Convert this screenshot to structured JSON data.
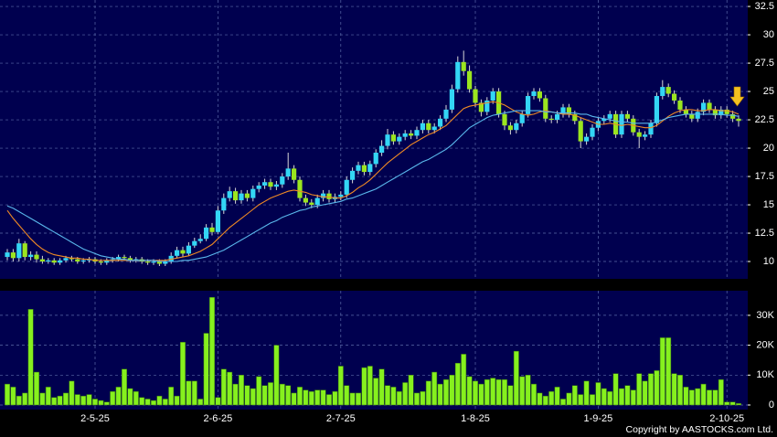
{
  "chart_data": [
    {
      "type": "candlestick",
      "open": [
        10.4,
        10.8,
        10.3,
        11.6,
        10.4,
        10.6,
        10.2,
        10.0,
        10.1,
        9.9,
        10.1,
        10.3,
        10.2,
        10.0,
        10.1,
        10.2,
        10.0,
        9.9,
        10.1,
        10.2,
        10.4,
        10.3,
        10.1,
        10.2,
        10.0,
        9.9,
        10.0,
        9.8,
        10.0,
        10.5,
        11.0,
        10.7,
        11.4,
        11.8,
        12.0,
        13.0,
        12.6,
        14.5,
        15.6,
        16.2,
        15.4,
        16.0,
        15.6,
        16.4,
        16.7,
        17.0,
        16.6,
        16.8,
        17.5,
        18.2,
        17.2,
        15.6,
        15.2,
        15.0,
        15.6,
        16.0,
        15.5,
        15.7,
        15.9,
        17.2,
        18.0,
        18.5,
        17.9,
        18.6,
        19.6,
        20.2,
        21.2,
        20.6,
        21.0,
        21.3,
        21.1,
        21.6,
        22.2,
        21.6,
        21.9,
        22.6,
        23.4,
        25.2,
        27.6,
        26.8,
        25.2,
        24.0,
        23.2,
        24.2,
        25.0,
        23.0,
        22.0,
        21.6,
        22.2,
        23.0,
        24.6,
        25.0,
        24.4,
        22.6,
        22.5,
        23.0,
        23.6,
        23.0,
        22.4,
        20.6,
        21.0,
        21.8,
        22.4,
        22.6,
        23.0,
        21.2,
        23.0,
        22.6,
        21.4,
        21.0,
        21.2,
        22.2,
        24.6,
        25.4,
        24.8,
        24.2,
        23.4,
        23.0,
        22.6,
        23.2,
        24.0,
        23.4,
        22.9,
        23.4,
        23.0,
        22.6
      ],
      "high": [
        11.1,
        11.1,
        12.0,
        11.8,
        10.9,
        10.9,
        10.5,
        10.3,
        10.3,
        10.3,
        10.5,
        10.5,
        10.4,
        10.3,
        10.4,
        10.4,
        10.2,
        10.3,
        10.4,
        10.6,
        10.6,
        10.5,
        10.4,
        10.4,
        10.2,
        10.2,
        10.2,
        10.2,
        10.8,
        11.3,
        11.3,
        11.7,
        12.1,
        12.4,
        13.3,
        13.4,
        14.9,
        16.0,
        16.6,
        16.5,
        16.3,
        16.3,
        16.7,
        17.0,
        17.3,
        17.3,
        17.1,
        17.8,
        19.6,
        18.5,
        17.5,
        15.9,
        15.5,
        15.9,
        16.3,
        16.3,
        16.0,
        16.2,
        17.5,
        18.3,
        18.8,
        18.8,
        18.9,
        19.9,
        20.7,
        21.7,
        21.5,
        21.3,
        21.6,
        21.6,
        21.9,
        22.5,
        22.5,
        22.2,
        22.9,
        23.8,
        25.6,
        28.1,
        28.6,
        27.3,
        25.5,
        24.3,
        24.5,
        25.3,
        25.3,
        23.3,
        22.3,
        22.5,
        23.3,
        24.9,
        25.3,
        25.3,
        24.7,
        22.9,
        23.3,
        23.9,
        23.9,
        23.3,
        22.7,
        21.3,
        22.1,
        22.7,
        22.9,
        23.3,
        23.3,
        23.3,
        23.3,
        22.9,
        21.7,
        21.5,
        22.5,
        24.9,
        26.0,
        25.7,
        25.1,
        24.5,
        23.7,
        23.3,
        23.5,
        24.3,
        24.3,
        23.7,
        23.7,
        23.7,
        23.3,
        22.9
      ],
      "low": [
        10.1,
        10.0,
        10.0,
        10.1,
        10.1,
        9.9,
        9.8,
        9.8,
        9.7,
        9.7,
        9.9,
        10.0,
        9.8,
        9.8,
        9.9,
        9.8,
        9.7,
        9.7,
        9.9,
        10.0,
        10.1,
        9.9,
        9.9,
        9.8,
        9.7,
        9.7,
        9.6,
        9.6,
        9.8,
        10.3,
        10.4,
        10.5,
        11.2,
        11.6,
        11.8,
        12.3,
        12.4,
        14.2,
        15.3,
        15.1,
        15.1,
        15.3,
        15.3,
        16.1,
        16.4,
        16.3,
        16.3,
        16.5,
        17.2,
        16.9,
        15.3,
        14.9,
        14.7,
        14.7,
        15.3,
        15.2,
        15.2,
        15.4,
        15.6,
        16.9,
        17.7,
        17.6,
        17.6,
        18.3,
        19.3,
        19.9,
        20.3,
        20.3,
        20.7,
        20.8,
        20.8,
        21.3,
        21.3,
        21.3,
        21.6,
        22.3,
        23.1,
        24.9,
        26.4,
        24.9,
        23.6,
        22.8,
        22.9,
        23.9,
        22.7,
        21.6,
        21.2,
        21.3,
        21.9,
        22.7,
        24.3,
        24.1,
        22.3,
        22.2,
        22.2,
        22.7,
        22.7,
        22.1,
        20.0,
        20.3,
        20.7,
        21.5,
        22.1,
        22.3,
        20.9,
        20.9,
        22.3,
        21.1,
        20.0,
        20.7,
        20.9,
        21.9,
        24.3,
        24.5,
        23.9,
        23.1,
        22.7,
        22.3,
        22.3,
        22.9,
        23.1,
        22.6,
        22.6,
        22.7,
        22.3,
        21.9
      ],
      "close": [
        10.8,
        10.3,
        11.6,
        10.4,
        10.6,
        10.2,
        10.0,
        10.1,
        9.9,
        10.1,
        10.3,
        10.2,
        10.0,
        10.1,
        10.2,
        10.0,
        9.9,
        10.1,
        10.2,
        10.4,
        10.3,
        10.1,
        10.2,
        10.0,
        9.9,
        10.0,
        9.8,
        10.0,
        10.5,
        11.0,
        10.7,
        11.4,
        11.8,
        12.0,
        13.0,
        12.6,
        14.5,
        15.6,
        16.2,
        15.4,
        16.0,
        15.6,
        16.4,
        16.7,
        17.0,
        16.6,
        16.8,
        17.5,
        18.2,
        17.2,
        15.6,
        15.2,
        15.0,
        15.6,
        16.0,
        15.5,
        15.7,
        15.9,
        17.2,
        18.0,
        18.5,
        17.9,
        18.6,
        19.6,
        20.2,
        21.2,
        20.6,
        21.0,
        21.3,
        21.1,
        21.6,
        22.2,
        21.6,
        21.9,
        22.6,
        23.4,
        25.2,
        27.6,
        26.8,
        25.2,
        24.0,
        23.2,
        24.2,
        25.0,
        23.0,
        22.0,
        21.6,
        22.2,
        23.0,
        24.6,
        25.0,
        24.4,
        22.6,
        22.5,
        23.0,
        23.6,
        23.0,
        22.4,
        20.6,
        21.0,
        21.8,
        22.4,
        22.6,
        23.0,
        21.2,
        23.0,
        22.6,
        21.4,
        21.0,
        21.2,
        22.2,
        24.6,
        25.4,
        24.8,
        24.2,
        23.4,
        23.0,
        22.6,
        23.2,
        24.0,
        23.4,
        22.9,
        23.4,
        23.0,
        22.6,
        22.4
      ],
      "up_color": "#33d6f5",
      "down_color": "#9be51f",
      "wick_color": "#d8d8d8",
      "lines": [
        {
          "color": "#f08a24",
          "values": [
            14.5,
            13.8,
            13.2,
            12.6,
            12.0,
            11.5,
            11.1,
            10.8,
            10.6,
            10.5,
            10.4,
            10.3,
            10.3,
            10.2,
            10.2,
            10.1,
            10.1,
            10.1,
            10.1,
            10.1,
            10.1,
            10.1,
            10.1,
            10.1,
            10.1,
            10.1,
            10.1,
            10.1,
            10.2,
            10.3,
            10.4,
            10.5,
            10.7,
            10.9,
            11.2,
            11.5,
            12.0,
            12.5,
            13.0,
            13.4,
            13.8,
            14.2,
            14.6,
            15.0,
            15.3,
            15.6,
            15.8,
            16.0,
            16.2,
            16.3,
            16.2,
            16.1,
            15.9,
            15.8,
            15.7,
            15.7,
            15.6,
            15.6,
            15.8,
            16.1,
            16.5,
            16.8,
            17.2,
            17.7,
            18.2,
            18.7,
            19.1,
            19.5,
            19.9,
            20.3,
            20.6,
            20.9,
            21.2,
            21.4,
            21.7,
            22.0,
            22.5,
            23.0,
            23.5,
            23.7,
            23.8,
            23.9,
            24.0,
            24.1,
            24.0,
            23.8,
            23.5,
            23.2,
            23.0,
            22.9,
            23.0,
            23.2,
            23.3,
            23.2,
            23.1,
            23.0,
            23.0,
            22.9,
            22.7,
            22.5,
            22.3,
            22.1,
            22.1,
            22.2,
            22.1,
            22.0,
            22.1,
            22.0,
            21.9,
            21.8,
            21.8,
            22.0,
            22.4,
            22.8,
            23.1,
            23.3,
            23.4,
            23.4,
            23.3,
            23.3,
            23.4,
            23.4,
            23.3,
            23.3,
            23.2,
            23.0
          ]
        },
        {
          "color": "#5ab8ec",
          "values": [
            14.9,
            14.7,
            14.4,
            14.1,
            13.8,
            13.5,
            13.2,
            12.9,
            12.6,
            12.3,
            12.0,
            11.7,
            11.4,
            11.1,
            10.9,
            10.7,
            10.5,
            10.4,
            10.3,
            10.2,
            10.2,
            10.1,
            10.1,
            10.1,
            10.1,
            10.1,
            10.0,
            10.0,
            10.0,
            10.0,
            10.1,
            10.1,
            10.2,
            10.3,
            10.4,
            10.6,
            10.8,
            11.0,
            11.3,
            11.6,
            11.9,
            12.2,
            12.5,
            12.8,
            13.1,
            13.4,
            13.6,
            13.9,
            14.1,
            14.3,
            14.5,
            14.6,
            14.8,
            14.9,
            15.0,
            15.1,
            15.2,
            15.3,
            15.5,
            15.6,
            15.8,
            16.0,
            16.2,
            16.4,
            16.7,
            17.0,
            17.3,
            17.6,
            17.9,
            18.2,
            18.5,
            18.8,
            19.0,
            19.3,
            19.6,
            19.9,
            20.3,
            20.8,
            21.3,
            21.8,
            22.1,
            22.4,
            22.7,
            22.9,
            23.0,
            23.1,
            23.2,
            23.3,
            23.3,
            23.3,
            23.3,
            23.3,
            23.2,
            23.2,
            23.1,
            23.1,
            23.1,
            23.1,
            23.0,
            23.0,
            22.8,
            22.7,
            22.6,
            22.5,
            22.4,
            22.3,
            22.3,
            22.2,
            22.2,
            22.2,
            22.2,
            22.3,
            22.5,
            22.7,
            22.8,
            22.9,
            23.0,
            23.0,
            23.0,
            23.0,
            23.0,
            23.0,
            23.0,
            22.9,
            22.9,
            22.8
          ]
        }
      ],
      "ylim": [
        8.47,
        33.07
      ],
      "yticks": [
        32.5,
        30,
        27.5,
        25,
        22.5,
        20,
        17.5,
        15,
        12.5,
        10
      ],
      "grid": true
    },
    {
      "type": "bar",
      "categories": [
        null,
        null,
        null,
        null,
        null,
        null,
        null,
        null,
        null,
        null,
        null,
        null,
        null,
        null,
        null,
        "2-5-25",
        null,
        null,
        null,
        null,
        null,
        null,
        null,
        null,
        null,
        null,
        null,
        null,
        null,
        null,
        null,
        null,
        null,
        null,
        null,
        null,
        "2-6-25",
        null,
        null,
        null,
        null,
        null,
        null,
        null,
        null,
        null,
        null,
        null,
        null,
        null,
        null,
        null,
        null,
        null,
        null,
        null,
        null,
        "2-7-25",
        null,
        null,
        null,
        null,
        null,
        null,
        null,
        null,
        null,
        null,
        null,
        null,
        null,
        null,
        null,
        null,
        null,
        null,
        null,
        null,
        null,
        null,
        "1-8-25",
        null,
        null,
        null,
        null,
        null,
        null,
        null,
        null,
        null,
        null,
        null,
        null,
        null,
        null,
        null,
        null,
        null,
        null,
        null,
        null,
        "1-9-25",
        null,
        null,
        null,
        null,
        null,
        null,
        null,
        null,
        null,
        null,
        null,
        null,
        null,
        null,
        null,
        null,
        null,
        null,
        null,
        null,
        null,
        "2-10-25",
        null,
        null
      ],
      "values": [
        7000,
        6000,
        3000,
        4000,
        32000,
        11000,
        4000,
        6000,
        2500,
        3000,
        4000,
        8000,
        3500,
        3000,
        3500,
        2000,
        1500,
        1000,
        4500,
        6000,
        12000,
        5500,
        4500,
        2500,
        2000,
        1500,
        3000,
        2000,
        6000,
        3000,
        21000,
        8000,
        8000,
        2000,
        24000,
        36000,
        2500,
        12000,
        11000,
        7000,
        10000,
        6500,
        5500,
        9500,
        6500,
        7500,
        20000,
        7000,
        6500,
        4000,
        6000,
        5000,
        4500,
        5000,
        5000,
        3500,
        4500,
        13000,
        6500,
        4000,
        4000,
        12500,
        13000,
        9000,
        12000,
        6500,
        6000,
        4500,
        7500,
        10000,
        4000,
        4500,
        8000,
        11000,
        7000,
        8500,
        10000,
        14000,
        17000,
        9500,
        8000,
        7000,
        8500,
        9000,
        8500,
        8500,
        6500,
        18000,
        9500,
        10000,
        7000,
        4000,
        3000,
        4500,
        6000,
        2000,
        4000,
        6500,
        3500,
        8000,
        3500,
        7500,
        5500,
        4500,
        10500,
        5500,
        6500,
        5000,
        10500,
        8000,
        10500,
        11500,
        22500,
        22500,
        10500,
        10000,
        6000,
        5000,
        5500,
        7000,
        5000,
        5000,
        8500,
        1000,
        1000,
        500
      ],
      "color": "#86f01e",
      "ylim": [
        -1530,
        38230
      ],
      "yticks": [
        {
          "value": 30000,
          "label": "30K"
        },
        {
          "value": 20000,
          "label": "20K"
        },
        {
          "value": 10000,
          "label": "10K"
        },
        0
      ],
      "grid": true
    }
  ],
  "copyright": "Copyright by AASTOCKS.com Ltd."
}
